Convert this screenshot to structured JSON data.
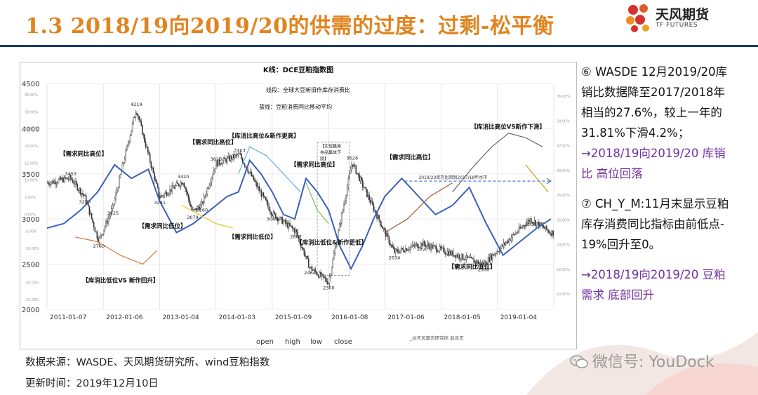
{
  "header": {
    "title": "1.3 2018/19向2019/20的供需的过度：过剩-松平衡",
    "logo_cn": "天风期货",
    "logo_en": "TF FUTURES"
  },
  "notes": {
    "item6_line1": "⑥ WASDE 12月2019/20库",
    "item6_line2": "销比数据降至2017/2018年",
    "item6_line3": "相当的27.6%，较上一年的",
    "item6_line4": "31.81%下滑4.2%；",
    "item6_conclusion_line1": "→2018/19向2019/20 库销",
    "item6_conclusion_line2": "比 高位回落",
    "item7_line1": "⑦ CH_Y_M:11月末显示豆粕",
    "item7_line2": "库存消费同比指标由前低点-",
    "item7_line3": "19%回升至0。",
    "item7_conclusion_line1": "→2018/19向2019/20 豆粕",
    "item7_conclusion_line2": "需求  底部回升"
  },
  "footer": {
    "source": "数据来源：WASDE、天风期货研究所、wind豆粕指数",
    "updated": "更新时间：2019年12月10日"
  },
  "watermark": {
    "text": "微信号: YouDock",
    "icon": "wechat-icon"
  },
  "colors": {
    "title": "#e0841f",
    "header_line": "#1f3a6a",
    "conclusion": "#7030a0",
    "candles": "#333333",
    "demand_line": "#3a60b8",
    "stock_line": "#666666",
    "dashed_arrow": "#4a7fd0"
  },
  "chart_data": {
    "type": "candlestick",
    "title": "K线：DCE豆粕指数图",
    "subtitle_line": "线段：全球大豆新旧作库存消费比",
    "subtitle_blue": "蓝线：豆粕消费同比移动平均",
    "y_ticks": [
      "4500",
      "4000",
      "3500",
      "3000",
      "2500",
      "2000"
    ],
    "y_range": [
      2000,
      4500
    ],
    "x_major_labels": [
      "2011-01-07",
      "2012-01-06",
      "2013-01-04",
      "2014-01-03",
      "2015-01-09",
      "2016-01-08",
      "2017-01-06",
      "2018-01-05",
      "2019-01-04"
    ],
    "price_labels": [
      {
        "label": "4219",
        "date": "2012-08",
        "value": 4219
      },
      {
        "label": "3453",
        "date": "2011-06",
        "value": 3453
      },
      {
        "label": "3250",
        "date": "2011-09",
        "value": 3250
      },
      {
        "label": "2760",
        "date": "2011-12",
        "value": 2760
      },
      {
        "label": "3241",
        "date": "2013-01",
        "value": 3241
      },
      {
        "label": "3125",
        "date": "2012-03",
        "value": 3125
      },
      {
        "label": "3420",
        "date": "2013-06",
        "value": 3420
      },
      {
        "label": "3613",
        "date": "2014-01",
        "value": 3613
      },
      {
        "label": "3713",
        "date": "2014-06",
        "value": 3713
      },
      {
        "label": "3079",
        "date": "2013-08",
        "value": 3079
      },
      {
        "label": "3160",
        "date": "2013-10",
        "value": 3160
      },
      {
        "label": "3060",
        "date": "2015-01",
        "value": 3060
      },
      {
        "label": "2867",
        "date": "2015-06",
        "value": 2867
      },
      {
        "label": "2464",
        "date": "2015-09",
        "value": 2464
      },
      {
        "label": "2300",
        "date": "2016-01",
        "value": 2300
      },
      {
        "label": "3626",
        "date": "2016-06",
        "value": 3626
      },
      {
        "label": "2634",
        "date": "2017-03",
        "value": 2634
      },
      {
        "label": "2727",
        "date": "2017-09",
        "value": 2727
      },
      {
        "label": "2500",
        "date": "2018-10",
        "value": 2500
      },
      {
        "label": "3000",
        "date": "2019-08",
        "value": 3000
      }
    ],
    "annotations": [
      "【需求同比高位】",
      "【需求同比低位】",
      "【库消比低位VS 新作回升】",
      "【需求同比高位】",
      "【库消比高位&新作更高】",
      "【需求同比高位】",
      "【需求同比低位】",
      "【库消比低位&新作更低】",
      "【需求同比高位】",
      "【库消比高位VS新作下滑】",
      "【需求同比低位】"
    ],
    "boxed_annotation": [
      "【实现集库",
      "存品集体下",
      "跌】"
    ],
    "dashed_arrow_label": "2019/20库存比回到2017/18年水平",
    "legend": [
      "open",
      "high",
      "low",
      "close"
    ],
    "credit": "_@天风期货研究所  赵且东",
    "right_axis_ticks": [
      "36.00%",
      "34.00%",
      "32.00%",
      "30.00%",
      "28.00%",
      "26.00%",
      "24.00%",
      "22.00%",
      "20.00%"
    ],
    "left_pct_ticks": [
      "35.00%",
      "30.00%",
      "25.00%",
      "20.00%",
      "15.00%",
      "10.00%",
      "5.00%",
      "0.00%",
      "-5.00%",
      "-10.00%",
      "-15.00%",
      "-20.00%",
      "-25.00%"
    ]
  }
}
